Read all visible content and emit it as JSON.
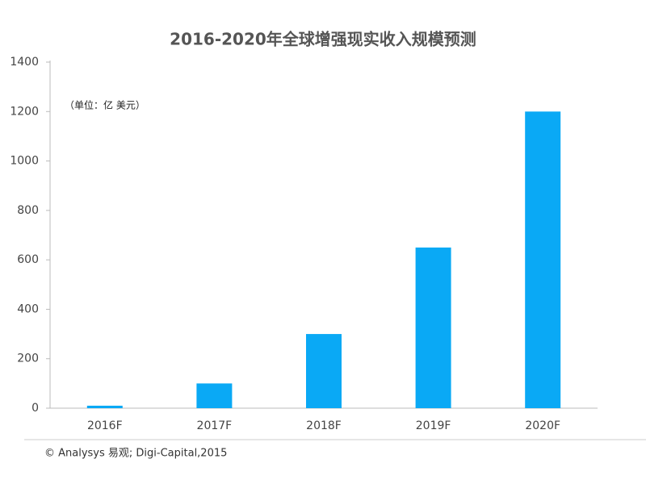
{
  "chart_data": {
    "type": "bar",
    "title": "2016-2020年全球增强现实收入规模预测",
    "unit_note": "（单位：亿 美元）",
    "source": "© Analysys 易观; Digi-Capital,2015",
    "categories": [
      "2016F",
      "2017F",
      "2018F",
      "2019F",
      "2020F"
    ],
    "values": [
      10,
      100,
      300,
      650,
      1200
    ],
    "color": "#0aa9f5",
    "ylim": [
      0,
      1400
    ],
    "yticks": [
      0,
      200,
      400,
      600,
      800,
      1000,
      1200,
      1400
    ],
    "grid": false
  }
}
